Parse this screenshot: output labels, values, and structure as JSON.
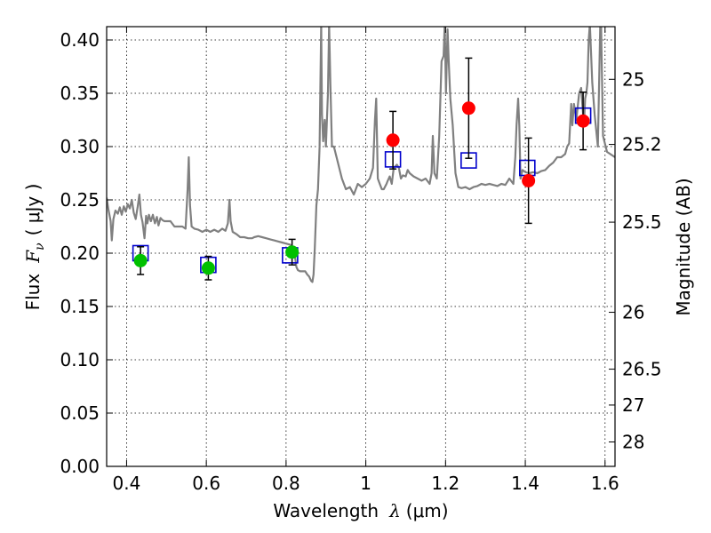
{
  "chart_data": {
    "type": "scatter",
    "title": "",
    "xlabel": "Wavelength",
    "xlabel_symbol": "λ",
    "xlabel_unit": "(μm)",
    "ylabel": "Flux",
    "ylabel_symbol": "F",
    "ylabel_subscript": "ν",
    "ylabel_unit": "( μJy )",
    "y2label": "Magnitude (AB)",
    "xlim": [
      0.35,
      1.625
    ],
    "ylim": [
      0.0,
      0.4125
    ],
    "grid": true,
    "x_ticks": [
      {
        "value": 0.4,
        "label": "0.4"
      },
      {
        "value": 0.6,
        "label": "0.6"
      },
      {
        "value": 0.8,
        "label": "0.8"
      },
      {
        "value": 1.0,
        "label": "1"
      },
      {
        "value": 1.2,
        "label": "1.2"
      },
      {
        "value": 1.4,
        "label": "1.4"
      },
      {
        "value": 1.6,
        "label": "1.6"
      }
    ],
    "y_ticks": [
      {
        "value": 0.0,
        "label": "0.00"
      },
      {
        "value": 0.05,
        "label": "0.05"
      },
      {
        "value": 0.1,
        "label": "0.10"
      },
      {
        "value": 0.15,
        "label": "0.15"
      },
      {
        "value": 0.2,
        "label": "0.20"
      },
      {
        "value": 0.25,
        "label": "0.25"
      },
      {
        "value": 0.3,
        "label": "0.30"
      },
      {
        "value": 0.35,
        "label": "0.35"
      },
      {
        "value": 0.4,
        "label": "0.40"
      }
    ],
    "y2_ticks": [
      {
        "value": 25,
        "label": "25"
      },
      {
        "value": 25.2,
        "label": "25.2"
      },
      {
        "value": 25.5,
        "label": "25.5"
      },
      {
        "value": 26,
        "label": "26"
      },
      {
        "value": 26.5,
        "label": "26.5"
      },
      {
        "value": 27,
        "label": "27"
      },
      {
        "value": 28,
        "label": "28"
      }
    ],
    "magnitude_zero_point_ujy": 3631000000,
    "series": [
      {
        "kind": "line",
        "color": "#808080",
        "points": [
          [
            0.35,
            0.252
          ],
          [
            0.355,
            0.24
          ],
          [
            0.36,
            0.23
          ],
          [
            0.363,
            0.212
          ],
          [
            0.367,
            0.232
          ],
          [
            0.372,
            0.24
          ],
          [
            0.378,
            0.237
          ],
          [
            0.383,
            0.243
          ],
          [
            0.388,
            0.236
          ],
          [
            0.393,
            0.244
          ],
          [
            0.398,
            0.239
          ],
          [
            0.403,
            0.246
          ],
          [
            0.408,
            0.242
          ],
          [
            0.413,
            0.25
          ],
          [
            0.418,
            0.238
          ],
          [
            0.423,
            0.232
          ],
          [
            0.428,
            0.244
          ],
          [
            0.432,
            0.255
          ],
          [
            0.436,
            0.236
          ],
          [
            0.44,
            0.229
          ],
          [
            0.445,
            0.214
          ],
          [
            0.449,
            0.235
          ],
          [
            0.452,
            0.228
          ],
          [
            0.456,
            0.236
          ],
          [
            0.461,
            0.23
          ],
          [
            0.466,
            0.236
          ],
          [
            0.471,
            0.228
          ],
          [
            0.476,
            0.234
          ],
          [
            0.48,
            0.226
          ],
          [
            0.485,
            0.233
          ],
          [
            0.49,
            0.231
          ],
          [
            0.495,
            0.23
          ],
          [
            0.5,
            0.23
          ],
          [
            0.51,
            0.23
          ],
          [
            0.52,
            0.225
          ],
          [
            0.53,
            0.225
          ],
          [
            0.54,
            0.225
          ],
          [
            0.548,
            0.223
          ],
          [
            0.553,
            0.26
          ],
          [
            0.556,
            0.29
          ],
          [
            0.559,
            0.245
          ],
          [
            0.563,
            0.225
          ],
          [
            0.57,
            0.223
          ],
          [
            0.58,
            0.222
          ],
          [
            0.59,
            0.22
          ],
          [
            0.6,
            0.222
          ],
          [
            0.61,
            0.22
          ],
          [
            0.62,
            0.222
          ],
          [
            0.63,
            0.22
          ],
          [
            0.64,
            0.223
          ],
          [
            0.648,
            0.221
          ],
          [
            0.654,
            0.228
          ],
          [
            0.658,
            0.25
          ],
          [
            0.661,
            0.23
          ],
          [
            0.666,
            0.22
          ],
          [
            0.675,
            0.218
          ],
          [
            0.685,
            0.215
          ],
          [
            0.695,
            0.215
          ],
          [
            0.705,
            0.214
          ],
          [
            0.715,
            0.214
          ],
          [
            0.72,
            0.215
          ],
          [
            0.73,
            0.216
          ],
          [
            0.74,
            0.215
          ],
          [
            0.75,
            0.214
          ],
          [
            0.76,
            0.213
          ],
          [
            0.77,
            0.212
          ],
          [
            0.78,
            0.211
          ],
          [
            0.79,
            0.21
          ],
          [
            0.8,
            0.209
          ],
          [
            0.81,
            0.208
          ],
          [
            0.818,
            0.205
          ],
          [
            0.823,
            0.195
          ],
          [
            0.826,
            0.187
          ],
          [
            0.83,
            0.184
          ],
          [
            0.835,
            0.183
          ],
          [
            0.84,
            0.183
          ],
          [
            0.848,
            0.183
          ],
          [
            0.853,
            0.18
          ],
          [
            0.858,
            0.178
          ],
          [
            0.863,
            0.174
          ],
          [
            0.866,
            0.173
          ],
          [
            0.869,
            0.18
          ],
          [
            0.872,
            0.205
          ],
          [
            0.876,
            0.245
          ],
          [
            0.88,
            0.26
          ],
          [
            0.884,
            0.3
          ],
          [
            0.888,
            0.415
          ],
          [
            0.89,
            0.33
          ],
          [
            0.893,
            0.305
          ],
          [
            0.897,
            0.325
          ],
          [
            0.9,
            0.3
          ],
          [
            0.905,
            0.35
          ],
          [
            0.908,
            0.415
          ],
          [
            0.911,
            0.36
          ],
          [
            0.915,
            0.3
          ],
          [
            0.92,
            0.3
          ],
          [
            0.93,
            0.285
          ],
          [
            0.94,
            0.27
          ],
          [
            0.95,
            0.26
          ],
          [
            0.96,
            0.262
          ],
          [
            0.97,
            0.255
          ],
          [
            0.98,
            0.265
          ],
          [
            0.99,
            0.262
          ],
          [
            1.0,
            0.265
          ],
          [
            1.01,
            0.27
          ],
          [
            1.018,
            0.28
          ],
          [
            1.023,
            0.325
          ],
          [
            1.026,
            0.345
          ],
          [
            1.03,
            0.27
          ],
          [
            1.035,
            0.265
          ],
          [
            1.04,
            0.26
          ],
          [
            1.045,
            0.26
          ],
          [
            1.052,
            0.265
          ],
          [
            1.055,
            0.268
          ],
          [
            1.06,
            0.272
          ],
          [
            1.065,
            0.265
          ],
          [
            1.07,
            0.28
          ],
          [
            1.078,
            0.283
          ],
          [
            1.083,
            0.28
          ],
          [
            1.088,
            0.27
          ],
          [
            1.093,
            0.273
          ],
          [
            1.1,
            0.272
          ],
          [
            1.105,
            0.278
          ],
          [
            1.11,
            0.275
          ],
          [
            1.12,
            0.272
          ],
          [
            1.13,
            0.27
          ],
          [
            1.14,
            0.268
          ],
          [
            1.15,
            0.27
          ],
          [
            1.16,
            0.265
          ],
          [
            1.165,
            0.275
          ],
          [
            1.168,
            0.31
          ],
          [
            1.172,
            0.275
          ],
          [
            1.178,
            0.27
          ],
          [
            1.184,
            0.31
          ],
          [
            1.19,
            0.38
          ],
          [
            1.195,
            0.385
          ],
          [
            1.198,
            0.415
          ],
          [
            1.201,
            0.35
          ],
          [
            1.205,
            0.41
          ],
          [
            1.208,
            0.38
          ],
          [
            1.212,
            0.345
          ],
          [
            1.218,
            0.32
          ],
          [
            1.225,
            0.275
          ],
          [
            1.232,
            0.262
          ],
          [
            1.24,
            0.261
          ],
          [
            1.25,
            0.262
          ],
          [
            1.26,
            0.26
          ],
          [
            1.27,
            0.262
          ],
          [
            1.28,
            0.263
          ],
          [
            1.29,
            0.265
          ],
          [
            1.3,
            0.264
          ],
          [
            1.31,
            0.265
          ],
          [
            1.32,
            0.264
          ],
          [
            1.33,
            0.263
          ],
          [
            1.34,
            0.265
          ],
          [
            1.35,
            0.264
          ],
          [
            1.36,
            0.27
          ],
          [
            1.37,
            0.265
          ],
          [
            1.375,
            0.29
          ],
          [
            1.378,
            0.32
          ],
          [
            1.382,
            0.345
          ],
          [
            1.385,
            0.32
          ],
          [
            1.388,
            0.27
          ],
          [
            1.393,
            0.278
          ],
          [
            1.4,
            0.276
          ],
          [
            1.41,
            0.275
          ],
          [
            1.42,
            0.276
          ],
          [
            1.43,
            0.275
          ],
          [
            1.44,
            0.277
          ],
          [
            1.45,
            0.278
          ],
          [
            1.46,
            0.282
          ],
          [
            1.47,
            0.285
          ],
          [
            1.48,
            0.29
          ],
          [
            1.49,
            0.29
          ],
          [
            1.5,
            0.293
          ],
          [
            1.505,
            0.3
          ],
          [
            1.51,
            0.303
          ],
          [
            1.515,
            0.34
          ],
          [
            1.518,
            0.32
          ],
          [
            1.522,
            0.34
          ],
          [
            1.528,
            0.325
          ],
          [
            1.535,
            0.35
          ],
          [
            1.54,
            0.355
          ],
          [
            1.543,
            0.34
          ],
          [
            1.547,
            0.32
          ],
          [
            1.55,
            0.345
          ],
          [
            1.553,
            0.35
          ],
          [
            1.556,
            0.36
          ],
          [
            1.559,
            0.4
          ],
          [
            1.562,
            0.415
          ],
          [
            1.568,
            0.36
          ],
          [
            1.574,
            0.33
          ],
          [
            1.582,
            0.3
          ],
          [
            1.588,
            0.415
          ],
          [
            1.59,
            0.415
          ],
          [
            1.595,
            0.31
          ],
          [
            1.605,
            0.295
          ],
          [
            1.625,
            0.29
          ]
        ]
      },
      {
        "kind": "squares",
        "color": "#0000cc",
        "points": [
          [
            0.435,
            0.2
          ],
          [
            0.605,
            0.189
          ],
          [
            0.81,
            0.198
          ],
          [
            1.068,
            0.288
          ],
          [
            1.258,
            0.287
          ],
          [
            1.405,
            0.28
          ],
          [
            1.545,
            0.329
          ]
        ]
      },
      {
        "kind": "circles",
        "color": "#00c000",
        "points": [
          [
            0.435,
            0.193,
            0.013
          ],
          [
            0.605,
            0.186,
            0.011
          ],
          [
            0.815,
            0.201,
            0.012
          ]
        ]
      },
      {
        "kind": "circles",
        "color": "#ff0000",
        "points": [
          [
            1.068,
            0.306,
            0.027
          ],
          [
            1.258,
            0.336,
            0.047
          ],
          [
            1.408,
            0.268,
            0.04
          ],
          [
            1.545,
            0.324,
            0.027
          ]
        ]
      }
    ]
  }
}
